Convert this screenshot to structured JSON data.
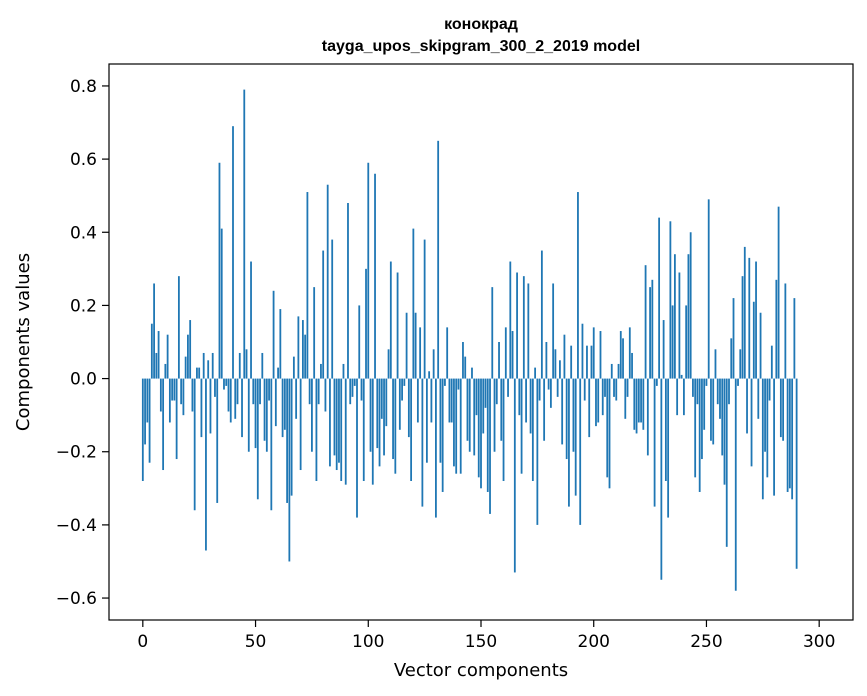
{
  "chart_data": {
    "type": "bar",
    "title": "конокрад",
    "subtitle": "tayga_upos_skipgram_300_2_2019 model",
    "xlabel": "Vector components",
    "ylabel": "Components values",
    "xlim": [
      -15,
      315
    ],
    "ylim": [
      -0.66,
      0.86
    ],
    "xticks": [
      0,
      50,
      100,
      150,
      200,
      250,
      300
    ],
    "xtick_labels": [
      "0",
      "50",
      "100",
      "150",
      "200",
      "250",
      "300"
    ],
    "yticks": [
      -0.6,
      -0.4,
      -0.2,
      0.0,
      0.2,
      0.4,
      0.6,
      0.8
    ],
    "ytick_labels": [
      "−0.6",
      "−0.4",
      "−0.2",
      "0.0",
      "0.2",
      "0.4",
      "0.6",
      "0.8"
    ],
    "grid": false,
    "bar_color": "#1f77b4",
    "values": [
      -0.28,
      -0.18,
      -0.12,
      -0.23,
      0.15,
      0.26,
      0.07,
      0.13,
      -0.09,
      -0.25,
      0.04,
      0.12,
      -0.12,
      -0.06,
      -0.06,
      -0.22,
      0.28,
      -0.07,
      -0.1,
      0.06,
      0.12,
      0.16,
      -0.09,
      -0.36,
      0.03,
      0.03,
      -0.16,
      0.07,
      -0.47,
      0.05,
      -0.15,
      0.07,
      -0.05,
      -0.34,
      0.59,
      0.41,
      -0.03,
      -0.02,
      -0.09,
      -0.12,
      0.69,
      -0.11,
      -0.07,
      0.07,
      -0.16,
      0.79,
      0.08,
      -0.2,
      0.32,
      -0.07,
      -0.19,
      -0.33,
      -0.07,
      0.07,
      -0.17,
      -0.2,
      -0.06,
      -0.36,
      0.24,
      -0.13,
      0.03,
      0.19,
      -0.16,
      -0.14,
      -0.34,
      -0.5,
      -0.32,
      0.06,
      -0.11,
      0.17,
      -0.25,
      0.16,
      0.12,
      0.51,
      -0.07,
      -0.2,
      0.25,
      -0.28,
      -0.07,
      0.04,
      0.35,
      -0.09,
      0.53,
      -0.24,
      0.38,
      -0.21,
      -0.25,
      -0.23,
      -0.28,
      0.04,
      -0.29,
      0.48,
      -0.07,
      -0.05,
      -0.02,
      -0.38,
      0.2,
      -0.06,
      -0.28,
      0.3,
      0.59,
      -0.2,
      -0.29,
      0.56,
      -0.19,
      -0.24,
      -0.11,
      -0.21,
      -0.13,
      0.08,
      0.32,
      -0.22,
      -0.26,
      0.29,
      -0.14,
      -0.06,
      -0.02,
      0.18,
      -0.16,
      -0.28,
      0.41,
      0.18,
      -0.12,
      0.14,
      -0.35,
      0.38,
      -0.23,
      0.02,
      -0.12,
      0.08,
      -0.38,
      0.65,
      -0.23,
      -0.31,
      -0.02,
      0.14,
      -0.12,
      -0.12,
      -0.24,
      -0.26,
      -0.03,
      -0.26,
      0.1,
      0.06,
      -0.17,
      -0.2,
      0.03,
      -0.21,
      -0.1,
      -0.27,
      -0.3,
      -0.15,
      -0.08,
      -0.31,
      -0.37,
      0.25,
      -0.2,
      -0.07,
      0.1,
      -0.17,
      -0.28,
      0.14,
      -0.05,
      0.32,
      0.13,
      -0.53,
      0.29,
      -0.1,
      -0.26,
      0.28,
      -0.12,
      0.26,
      -0.15,
      -0.28,
      0.03,
      -0.4,
      -0.06,
      0.35,
      -0.17,
      0.1,
      -0.03,
      -0.08,
      0.26,
      0.08,
      -0.05,
      0.05,
      -0.18,
      0.12,
      -0.22,
      -0.35,
      0.09,
      -0.2,
      -0.32,
      0.51,
      -0.4,
      0.15,
      -0.06,
      0.09,
      -0.16,
      0.09,
      0.14,
      -0.13,
      -0.12,
      0.13,
      -0.1,
      -0.05,
      -0.27,
      -0.3,
      0.04,
      -0.05,
      -0.06,
      0.04,
      0.13,
      0.11,
      -0.11,
      -0.05,
      0.14,
      0.07,
      -0.14,
      -0.15,
      -0.12,
      -0.12,
      -0.14,
      0.31,
      -0.21,
      0.25,
      0.27,
      -0.35,
      -0.02,
      0.44,
      -0.55,
      0.16,
      -0.28,
      -0.38,
      0.43,
      0.2,
      0.34,
      -0.1,
      0.29,
      0.01,
      -0.1,
      0.2,
      0.34,
      0.4,
      -0.05,
      -0.27,
      -0.07,
      -0.31,
      -0.22,
      -0.14,
      -0.02,
      0.49,
      -0.17,
      -0.18,
      0.08,
      -0.07,
      -0.11,
      -0.21,
      -0.29,
      -0.46,
      -0.07,
      0.11,
      0.22,
      -0.58,
      -0.02,
      0.08,
      0.28,
      0.36,
      -0.15,
      0.33,
      -0.24,
      0.21,
      0.32,
      -0.11,
      0.18,
      -0.33,
      -0.2,
      -0.27,
      -0.06,
      0.09,
      -0.32,
      0.27,
      0.47,
      -0.16,
      -0.17,
      0.26,
      -0.31,
      -0.3,
      -0.33,
      0.22,
      -0.52
    ]
  }
}
